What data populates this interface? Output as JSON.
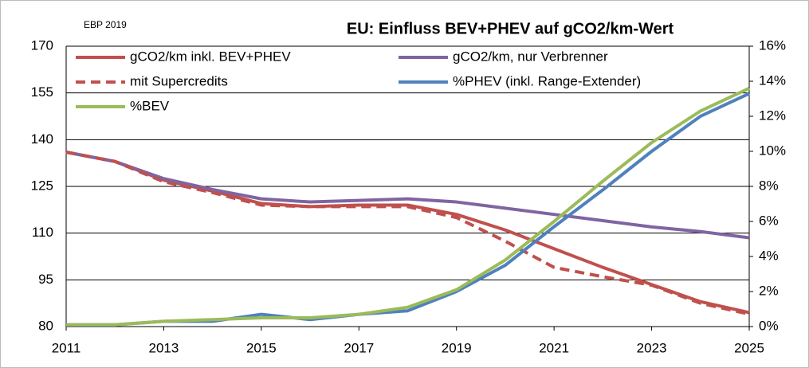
{
  "chart_data": {
    "type": "line",
    "title": "EU: Einfluss BEV+PHEV auf gCO2/km-Wert",
    "source": "EBP 2019",
    "x": [
      2011,
      2012,
      2013,
      2014,
      2015,
      2016,
      2017,
      2018,
      2019,
      2020,
      2021,
      2022,
      2023,
      2024,
      2025
    ],
    "xlim": [
      2011,
      2025
    ],
    "xticks": [
      2011,
      2013,
      2015,
      2017,
      2019,
      2021,
      2023,
      2025
    ],
    "ylim": [
      80,
      170
    ],
    "yticks": [
      80,
      95,
      110,
      125,
      140,
      155,
      170
    ],
    "y2lim": [
      0,
      16
    ],
    "y2ticks": [
      {
        "value": 0,
        "label": "0%"
      },
      {
        "value": 2,
        "label": "2%"
      },
      {
        "value": 4,
        "label": "4%"
      },
      {
        "value": 6,
        "label": "6%"
      },
      {
        "value": 8,
        "label": "8%"
      },
      {
        "value": 10,
        "label": "10%"
      },
      {
        "value": 12,
        "label": "12%"
      },
      {
        "value": 14,
        "label": "14%"
      },
      {
        "value": 16,
        "label": "16%"
      }
    ],
    "grid": true,
    "series": [
      {
        "name": "gCO2/km inkl. BEV+PHEV",
        "color": "#c0504d",
        "style": "solid",
        "axis": "y",
        "values": [
          136,
          133,
          127,
          123.5,
          119.5,
          118.5,
          119,
          119,
          116,
          111,
          105,
          99,
          93.5,
          88,
          84.5
        ]
      },
      {
        "name": "gCO2/km, nur Verbrenner",
        "color": "#8064a2",
        "style": "solid",
        "axis": "y",
        "values": [
          136,
          133,
          127.5,
          124,
          121,
          120,
          120.5,
          121,
          120,
          118,
          116,
          114,
          112,
          110.5,
          108.5
        ]
      },
      {
        "name": "mit Supercredits",
        "color": "#c0504d",
        "style": "dashed",
        "axis": "y",
        "values": [
          136,
          133,
          126.5,
          123,
          119,
          118.5,
          118.5,
          118.5,
          115,
          107.4,
          99,
          96,
          93.3,
          87.5,
          84
        ]
      },
      {
        "name": "%PHEV (inkl. Range-Extender)",
        "color": "#4f81bd",
        "style": "solid",
        "axis": "y2",
        "values": [
          0.1,
          0.1,
          0.3,
          0.3,
          0.7,
          0.4,
          0.7,
          0.9,
          2.0,
          3.5,
          5.7,
          7.8,
          10.0,
          12.0,
          13.3
        ]
      },
      {
        "name": "%BEV",
        "color": "#9bbb59",
        "style": "solid",
        "axis": "y2",
        "values": [
          0.1,
          0.1,
          0.3,
          0.4,
          0.5,
          0.5,
          0.7,
          1.1,
          2.1,
          3.8,
          6.0,
          8.3,
          10.5,
          12.3,
          13.6
        ]
      }
    ]
  }
}
